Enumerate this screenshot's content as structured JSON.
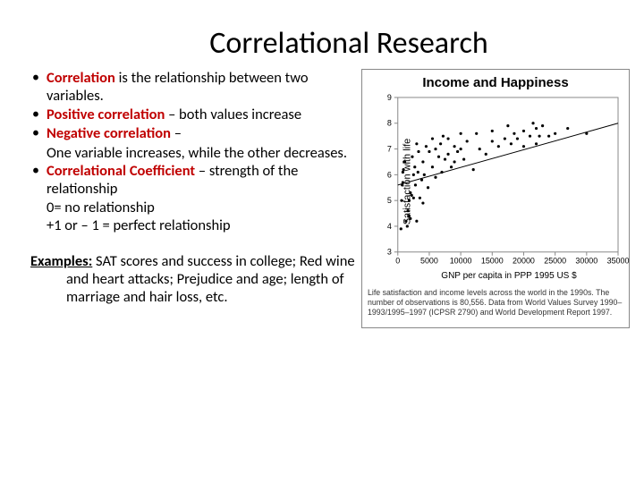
{
  "title": "Correlational Research",
  "bullets": [
    {
      "term": "Correlation",
      "rest": " is the relationship between two variables."
    },
    {
      "term": "Positive correlation",
      "rest": " – both values increase"
    },
    {
      "term": "Negative correlation",
      "rest": " –",
      "sub": [
        "One variable increases, while the other decreases."
      ]
    },
    {
      "term": "Correlational Coefficient",
      "rest": " – strength of the relationship",
      "sub": [
        "0= no relationship",
        "+1 or – 1 = perfect relationship"
      ]
    }
  ],
  "examples": {
    "label": "Examples:",
    "text": " SAT scores and success in college; Red wine and heart attacks; Prejudice and age; length of marriage and hair loss, etc."
  },
  "chart": {
    "type": "scatter",
    "title": "Income and Happiness",
    "xlabel": "GNP per capita in PPP 1995 US $",
    "ylabel": "Satisfaction with life",
    "xlim": [
      0,
      35000
    ],
    "ylim": [
      3,
      9
    ],
    "xticks": [
      0,
      5000,
      10000,
      15000,
      20000,
      25000,
      30000,
      35000
    ],
    "yticks": [
      3,
      4,
      5,
      6,
      7,
      8,
      9
    ],
    "grid_color": "#888888",
    "point_color": "#000000",
    "point_radius": 1.6,
    "line_color": "#000000",
    "line": {
      "x1": 0,
      "y1": 5.6,
      "x2": 35000,
      "y2": 8.0
    },
    "background_color": "#ffffff",
    "axis_fontsize": 9,
    "points": [
      [
        500,
        3.9
      ],
      [
        600,
        5.0
      ],
      [
        700,
        5.6
      ],
      [
        800,
        5.7
      ],
      [
        800,
        6.1
      ],
      [
        900,
        6.2
      ],
      [
        1000,
        6.5
      ],
      [
        1100,
        6.5
      ],
      [
        1300,
        4.2
      ],
      [
        1500,
        4.0
      ],
      [
        1600,
        4.6
      ],
      [
        1800,
        4.4
      ],
      [
        1800,
        5.0
      ],
      [
        2000,
        4.3
      ],
      [
        2000,
        5.3
      ],
      [
        2200,
        5.2
      ],
      [
        2300,
        6.7
      ],
      [
        2500,
        5.1
      ],
      [
        2500,
        6.0
      ],
      [
        2700,
        6.3
      ],
      [
        2800,
        5.6
      ],
      [
        3000,
        4.2
      ],
      [
        3000,
        7.2
      ],
      [
        3200,
        6.1
      ],
      [
        3300,
        6.9
      ],
      [
        3500,
        5.1
      ],
      [
        3800,
        5.8
      ],
      [
        4000,
        4.9
      ],
      [
        4000,
        6.5
      ],
      [
        4200,
        6.0
      ],
      [
        4500,
        7.1
      ],
      [
        4800,
        5.5
      ],
      [
        5000,
        6.9
      ],
      [
        5500,
        6.3
      ],
      [
        5500,
        7.4
      ],
      [
        6000,
        5.9
      ],
      [
        6000,
        7.0
      ],
      [
        6500,
        6.7
      ],
      [
        6800,
        7.2
      ],
      [
        7000,
        6.1
      ],
      [
        7200,
        7.5
      ],
      [
        7500,
        6.6
      ],
      [
        8000,
        6.8
      ],
      [
        8000,
        7.4
      ],
      [
        8500,
        6.3
      ],
      [
        9000,
        6.5
      ],
      [
        9000,
        7.1
      ],
      [
        9500,
        6.9
      ],
      [
        10000,
        7.0
      ],
      [
        10000,
        7.6
      ],
      [
        10500,
        6.6
      ],
      [
        11000,
        7.3
      ],
      [
        12000,
        6.2
      ],
      [
        12500,
        7.6
      ],
      [
        13000,
        7.0
      ],
      [
        14000,
        6.8
      ],
      [
        15000,
        7.3
      ],
      [
        15000,
        7.7
      ],
      [
        16000,
        7.1
      ],
      [
        17000,
        7.4
      ],
      [
        17500,
        7.9
      ],
      [
        18000,
        7.2
      ],
      [
        18500,
        7.6
      ],
      [
        19000,
        7.4
      ],
      [
        20000,
        7.1
      ],
      [
        20000,
        7.7
      ],
      [
        21000,
        7.5
      ],
      [
        21500,
        8.0
      ],
      [
        22000,
        7.2
      ],
      [
        22000,
        7.8
      ],
      [
        22500,
        7.5
      ],
      [
        23000,
        7.9
      ],
      [
        24000,
        7.5
      ],
      [
        25000,
        7.6
      ],
      [
        27000,
        7.8
      ],
      [
        30000,
        7.6
      ]
    ],
    "caption": "Life satisfaction and income levels across the world in the 1990s. The number of observations is 80,556. Data from World Values Survey 1990–1993/1995–1997 (ICPSR 2790) and World Development Report 1997."
  }
}
